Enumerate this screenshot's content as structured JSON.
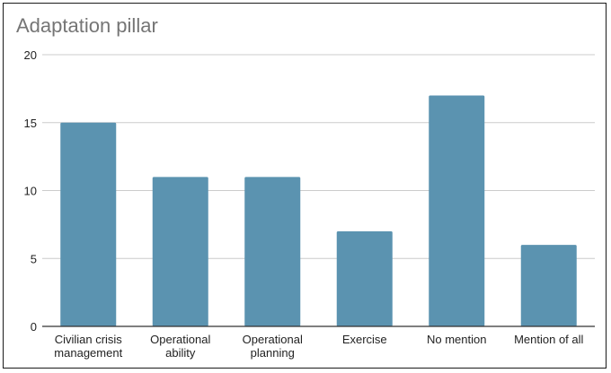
{
  "chart_data": {
    "type": "bar",
    "title": "Adaptation pillar",
    "xlabel": "",
    "ylabel": "",
    "categories": [
      [
        "Civilian crisis",
        "management"
      ],
      [
        "Operational",
        "ability"
      ],
      [
        "Operational",
        "planning"
      ],
      [
        "Exercise"
      ],
      [
        "No mention"
      ],
      [
        "Mention of all"
      ]
    ],
    "values": [
      15,
      11,
      11,
      7,
      17,
      6
    ],
    "ylim": [
      0,
      20
    ],
    "yticks": [
      0,
      5,
      10,
      15,
      20
    ],
    "grid": true,
    "legend": "none",
    "colors": {
      "bar": "#5b93b0",
      "grid": "#cccccc",
      "axis": "#333333",
      "title": "#757575",
      "text": "#222222"
    }
  }
}
